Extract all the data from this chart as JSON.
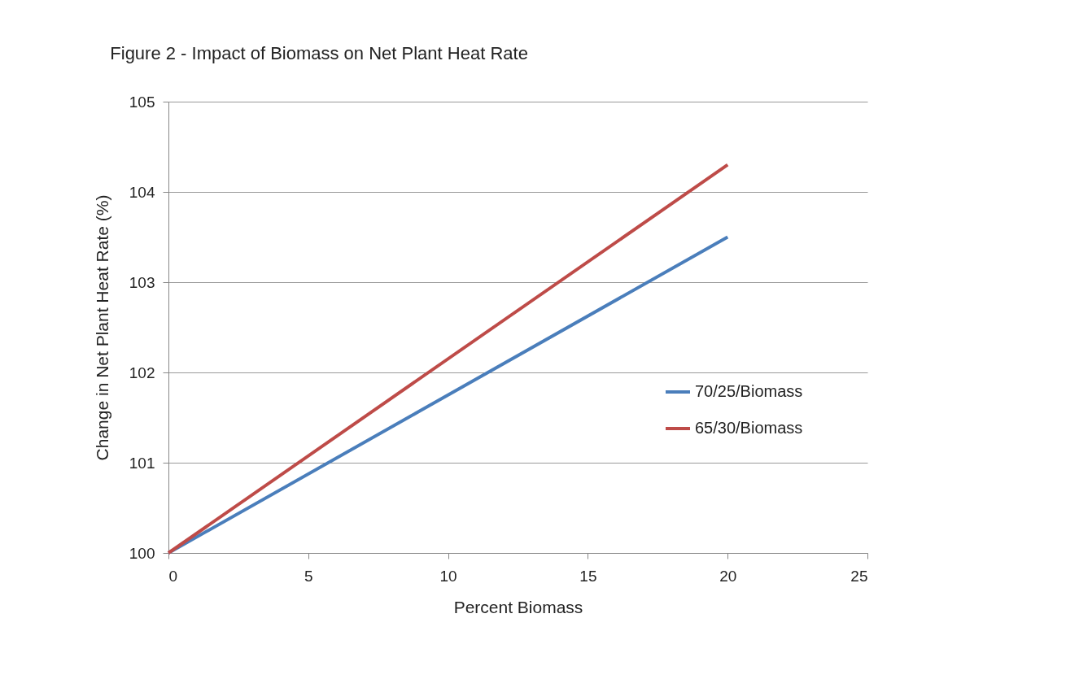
{
  "chart_data": {
    "type": "line",
    "title": "Figure 2 - Impact of Biomass on Net Plant Heat Rate",
    "xlabel": "Percent Biomass",
    "ylabel": "Change in Net Plant Heat Rate (%)",
    "x": [
      0,
      20
    ],
    "series": [
      {
        "name": "70/25/Biomass",
        "color": "#4a7ebb",
        "values": [
          100,
          103.5
        ]
      },
      {
        "name": "65/30/Biomass",
        "color": "#be4b48",
        "values": [
          100,
          104.3
        ]
      }
    ],
    "xlim": [
      0,
      25
    ],
    "xticks": [
      0,
      5,
      10,
      15,
      20,
      25
    ],
    "ylim": [
      100,
      105
    ],
    "yticks": [
      100,
      101,
      102,
      103,
      104,
      105
    ],
    "grid": "y",
    "legend": "right",
    "marker": "none",
    "line_style": "solid"
  }
}
